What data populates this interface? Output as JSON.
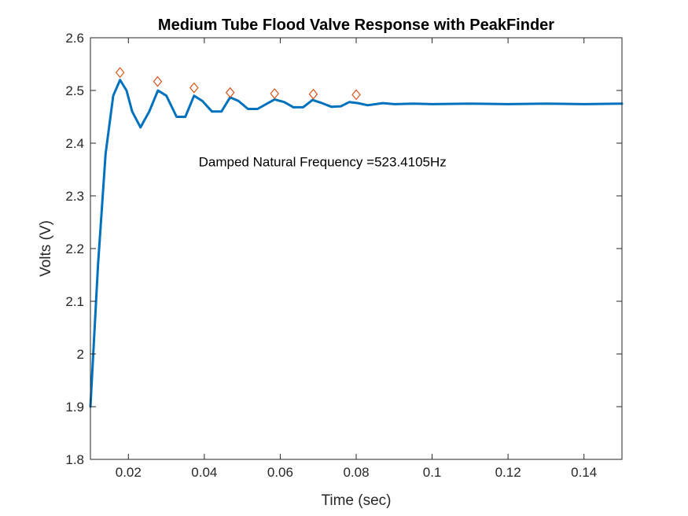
{
  "chart_data": {
    "type": "line",
    "title": "Medium Tube Flood Valve Response with PeakFinder",
    "xlabel": "Time (sec)",
    "ylabel": "Volts (V)",
    "xlim": [
      0.01,
      0.15
    ],
    "ylim": [
      1.8,
      2.6
    ],
    "xticks": [
      0.02,
      0.04,
      0.06,
      0.08,
      0.1,
      0.12,
      0.14
    ],
    "xtick_labels": [
      "0.02",
      "0.04",
      "0.06",
      "0.08",
      "0.1",
      "0.12",
      "0.14"
    ],
    "yticks": [
      1.8,
      1.9,
      2.0,
      2.1,
      2.2,
      2.3,
      2.4,
      2.5,
      2.6
    ],
    "ytick_labels": [
      "1.8",
      "1.9",
      "2",
      "2.1",
      "2.2",
      "2.3",
      "2.4",
      "2.5",
      "2.6"
    ],
    "grid": false,
    "series": [
      {
        "style": "line",
        "color": "#0072BD",
        "x": [
          0.01,
          0.012,
          0.014,
          0.016,
          0.0178,
          0.0195,
          0.021,
          0.0232,
          0.0255,
          0.0278,
          0.03,
          0.0327,
          0.035,
          0.0373,
          0.0395,
          0.042,
          0.0445,
          0.0468,
          0.049,
          0.0515,
          0.054,
          0.0585,
          0.061,
          0.0635,
          0.066,
          0.0685,
          0.071,
          0.0735,
          0.076,
          0.0782,
          0.0805,
          0.083,
          0.087,
          0.09,
          0.095,
          0.1,
          0.11,
          0.12,
          0.13,
          0.14,
          0.15
        ],
        "y": [
          1.9,
          2.17,
          2.38,
          2.49,
          2.52,
          2.5,
          2.46,
          2.43,
          2.46,
          2.5,
          2.49,
          2.45,
          2.45,
          2.49,
          2.48,
          2.46,
          2.46,
          2.487,
          2.48,
          2.465,
          2.465,
          2.483,
          2.478,
          2.468,
          2.468,
          2.482,
          2.476,
          2.469,
          2.47,
          2.478,
          2.476,
          2.472,
          2.476,
          2.474,
          2.475,
          2.474,
          2.475,
          2.474,
          2.475,
          2.474,
          2.475
        ]
      },
      {
        "style": "markers",
        "marker": "diamond",
        "color": "#D95319",
        "x": [
          0.0178,
          0.0277,
          0.0373,
          0.0468,
          0.0585,
          0.0687,
          0.08
        ],
        "y": [
          2.534,
          2.517,
          2.505,
          2.496,
          2.494,
          2.493,
          2.492
        ]
      }
    ],
    "annotation": {
      "text": "Damped Natural Frequency =523.4105Hz",
      "x": 0.0385,
      "y": 2.35
    }
  }
}
